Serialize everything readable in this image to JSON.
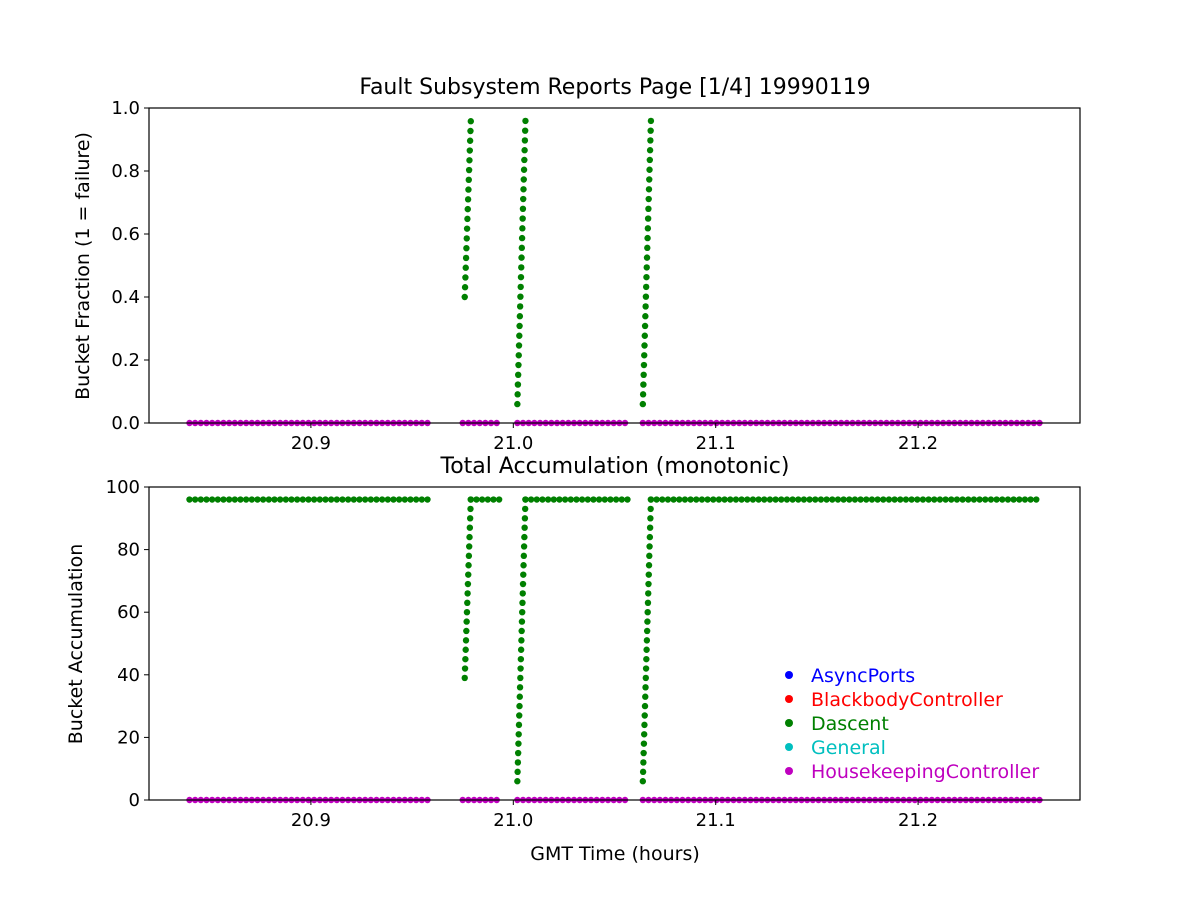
{
  "figure": {
    "legend": [
      {
        "label": "AsyncPorts",
        "color": "#0000ff"
      },
      {
        "label": "BlackbodyController",
        "color": "#ff0000"
      },
      {
        "label": "Dascent",
        "color": "#008000"
      },
      {
        "label": "General",
        "color": "#00bfbf"
      },
      {
        "label": "HousekeepingController",
        "color": "#bf00bf"
      }
    ],
    "legend_placement": "lower-right of bottom panel"
  },
  "chart_data": [
    {
      "type": "scatter",
      "title": "Fault Subsystem Reports Page [1/4] 19990119",
      "xlabel": "",
      "ylabel": "Bucket Fraction (1 = failure)",
      "xlim": [
        20.82,
        21.28
      ],
      "ylim": [
        0,
        1.0
      ],
      "xticks": [
        "20.9",
        "21.0",
        "21.1",
        "21.2"
      ],
      "xtick_values": [
        20.9,
        21.0,
        21.1,
        21.2
      ],
      "yticks": [
        "0.0",
        "0.2",
        "0.4",
        "0.6",
        "0.8",
        "1.0"
      ],
      "ytick_values": [
        0,
        0.2,
        0.4,
        0.6,
        0.8,
        1.0
      ],
      "grid": false,
      "series": [
        {
          "name": "HousekeepingController",
          "color": "#bf00bf",
          "baseline_segments": [
            [
              20.84,
              20.96
            ],
            [
              20.975,
              20.994
            ],
            [
              21.002,
              21.057
            ],
            [
              21.064,
              21.26
            ]
          ],
          "baseline_value": 0
        },
        {
          "name": "Dascent",
          "color": "#008000",
          "baseline_segments": [],
          "ramps": [
            {
              "x_start": 20.976,
              "x_end": 20.979,
              "y_start": 0.4,
              "y_end": 0.97,
              "step": 0.031
            },
            {
              "x_start": 21.002,
              "x_end": 21.006,
              "y_start": 0.06,
              "y_end": 0.97,
              "step": 0.031
            },
            {
              "x_start": 21.064,
              "x_end": 21.068,
              "y_start": 0.06,
              "y_end": 0.97,
              "step": 0.031
            }
          ]
        }
      ]
    },
    {
      "type": "scatter",
      "title": "Total Accumulation (monotonic)",
      "xlabel": "GMT Time (hours)",
      "ylabel": "Bucket Accumulation",
      "xlim": [
        20.82,
        21.28
      ],
      "ylim": [
        0,
        100
      ],
      "xticks": [
        "20.9",
        "21.0",
        "21.1",
        "21.2"
      ],
      "xtick_values": [
        20.9,
        21.0,
        21.1,
        21.2
      ],
      "yticks": [
        "0",
        "20",
        "40",
        "60",
        "80",
        "100"
      ],
      "ytick_values": [
        0,
        20,
        40,
        60,
        80,
        100
      ],
      "grid": false,
      "series": [
        {
          "name": "HousekeepingController",
          "color": "#bf00bf",
          "baseline_segments": [
            [
              20.84,
              20.96
            ],
            [
              20.975,
              20.994
            ],
            [
              21.002,
              21.057
            ],
            [
              21.064,
              21.26
            ]
          ],
          "baseline_value": 0
        },
        {
          "name": "Dascent",
          "color": "#008000",
          "baseline_segments": [
            [
              20.84,
              20.96
            ],
            [
              20.979,
              20.994
            ],
            [
              21.006,
              21.057
            ],
            [
              21.068,
              21.26
            ]
          ],
          "baseline_value": 96,
          "ramps": [
            {
              "x_start": 20.976,
              "x_end": 20.979,
              "y_start": 39,
              "y_end": 96,
              "step": 3
            },
            {
              "x_start": 21.002,
              "x_end": 21.006,
              "y_start": 6,
              "y_end": 96,
              "step": 3
            },
            {
              "x_start": 21.064,
              "x_end": 21.068,
              "y_start": 6,
              "y_end": 96,
              "step": 3
            }
          ]
        }
      ]
    }
  ]
}
